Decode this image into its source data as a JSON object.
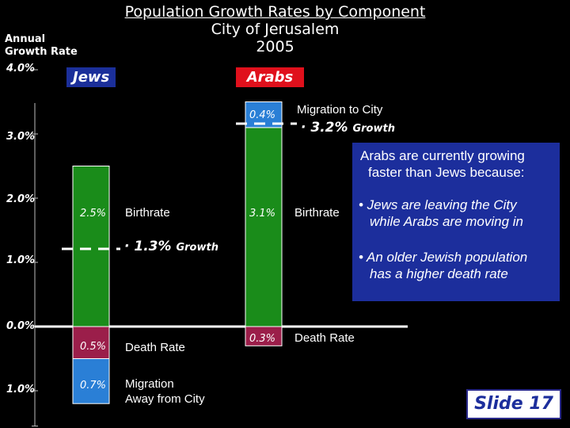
{
  "title": {
    "line1": "Population Growth Rates by Component",
    "line2": "City of Jerusalem",
    "line3": "2005"
  },
  "axis": {
    "label_line1": "Annual",
    "label_line2": "Growth Rate",
    "ticks": [
      "4.0%",
      "3.0%",
      "2.0%",
      "1.0%",
      "0.0%",
      "1.0%"
    ]
  },
  "groups": {
    "jews": "Jews",
    "arabs": "Arabs"
  },
  "chart_data": {
    "type": "bar",
    "title": "Population Growth Rates by Component City of Jerusalem 2005",
    "ylabel": "Annual Growth Rate",
    "ylim": [
      -1.6,
      4.0
    ],
    "categories": [
      "Jews",
      "Arabs"
    ],
    "series": [
      {
        "name": "Birthrate",
        "values": [
          2.5,
          3.1
        ],
        "color": "#1a8c1a"
      },
      {
        "name": "Death Rate",
        "values": [
          -0.5,
          -0.3
        ],
        "color": "#9b1e4a"
      },
      {
        "name": "Migration Away from City",
        "values": [
          -0.7,
          0
        ],
        "color": "#2a7fd6"
      },
      {
        "name": "Migration to City",
        "values": [
          0,
          0.4
        ],
        "color": "#2a7fd6"
      }
    ],
    "growth": [
      1.3,
      3.2
    ]
  },
  "labels": {
    "jews_birth_pct": "2.5%",
    "jews_death_pct": "0.5%",
    "jews_migration_pct": "0.7%",
    "arabs_birth_pct": "3.1%",
    "arabs_death_pct": "0.3%",
    "arabs_migration_pct": "0.4%",
    "birthrate": "Birthrate",
    "death_rate": "Death Rate",
    "migration_away_line1": "Migration",
    "migration_away_line2": "Away from City",
    "migration_to": "Migration to City",
    "jews_growth": "1.3%",
    "arabs_growth": "3.2%",
    "growth_word": "Growth"
  },
  "note": {
    "title_line1": "Arabs are currently growing",
    "title_line2": "faster than Jews because:",
    "bullet1_line1": "• Jews are leaving the City",
    "bullet1_line2": "while Arabs are moving in",
    "bullet2_line1": "• An older Jewish population",
    "bullet2_line2": "has a higher death rate"
  },
  "slide": "Slide 17",
  "colors": {
    "birth": "#1a8c1a",
    "death": "#9b1e4a",
    "migration": "#2a7fd6",
    "note_bg": "#1c2e9c",
    "arabs": "#e0101c"
  }
}
